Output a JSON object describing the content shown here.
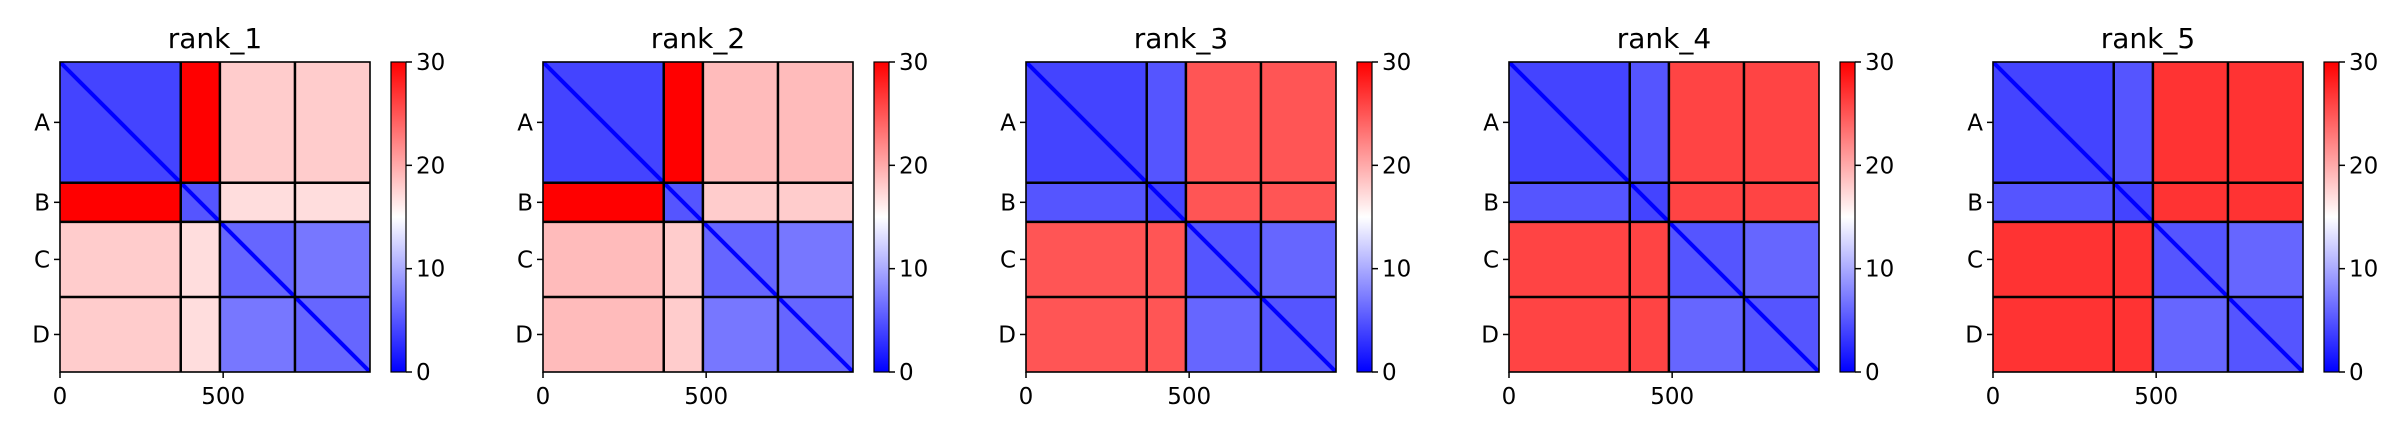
{
  "chart_data": [
    {
      "type": "heatmap",
      "title": "rank_1",
      "x_ticks": [
        0,
        500
      ],
      "y_tick_labels": [
        "A",
        "B",
        "C",
        "D"
      ],
      "colorbar": {
        "range": [
          0,
          30
        ],
        "ticks": [
          0,
          10,
          20,
          30
        ],
        "colormap": "bwr"
      },
      "matrix_size": 950,
      "block_boundaries": [
        370,
        490,
        720,
        950
      ],
      "chain_blocks": {
        "A": {
          "A": "4",
          "B": "30",
          "C": "18",
          "D": "18"
        },
        "B": {
          "A": "30",
          "B": "5",
          "C": "17",
          "D": "17"
        },
        "C": {
          "A": "18",
          "B": "17",
          "C": "6",
          "D": "7"
        },
        "D": {
          "A": "18",
          "B": "17",
          "C": "7",
          "D": "6"
        }
      }
    },
    {
      "type": "heatmap",
      "title": "rank_2",
      "x_ticks": [
        0,
        500
      ],
      "y_tick_labels": [
        "A",
        "B",
        "C",
        "D"
      ],
      "colorbar": {
        "range": [
          0,
          30
        ],
        "ticks": [
          0,
          10,
          20,
          30
        ],
        "colormap": "bwr"
      },
      "matrix_size": 950,
      "block_boundaries": [
        370,
        490,
        720,
        950
      ],
      "chain_blocks": {
        "A": {
          "A": "4",
          "B": "30",
          "C": "19",
          "D": "19"
        },
        "B": {
          "A": "30",
          "B": "5",
          "C": "18",
          "D": "18"
        },
        "C": {
          "A": "19",
          "B": "18",
          "C": "6",
          "D": "7"
        },
        "D": {
          "A": "19",
          "B": "18",
          "C": "7",
          "D": "6"
        }
      }
    },
    {
      "type": "heatmap",
      "title": "rank_3",
      "x_ticks": [
        0,
        500
      ],
      "y_tick_labels": [
        "A",
        "B",
        "C",
        "D"
      ],
      "colorbar": {
        "range": [
          0,
          30
        ],
        "ticks": [
          0,
          10,
          20,
          30
        ],
        "colormap": "bwr"
      },
      "matrix_size": 950,
      "block_boundaries": [
        370,
        490,
        720,
        950
      ],
      "chain_blocks": {
        "A": {
          "A": "4",
          "B": "5",
          "C": "25",
          "D": "25"
        },
        "B": {
          "A": "5",
          "B": "4",
          "C": "25",
          "D": "25"
        },
        "C": {
          "A": "25",
          "B": "25",
          "C": "5",
          "D": "6"
        },
        "D": {
          "A": "25",
          "B": "25",
          "C": "6",
          "D": "5"
        }
      }
    },
    {
      "type": "heatmap",
      "title": "rank_4",
      "x_ticks": [
        0,
        500
      ],
      "y_tick_labels": [
        "A",
        "B",
        "C",
        "D"
      ],
      "colorbar": {
        "range": [
          0,
          30
        ],
        "ticks": [
          0,
          10,
          20,
          30
        ],
        "colormap": "bwr"
      },
      "matrix_size": 950,
      "block_boundaries": [
        370,
        490,
        720,
        950
      ],
      "chain_blocks": {
        "A": {
          "A": "4",
          "B": "5",
          "C": "26",
          "D": "26"
        },
        "B": {
          "A": "5",
          "B": "4",
          "C": "26",
          "D": "26"
        },
        "C": {
          "A": "26",
          "B": "26",
          "C": "5",
          "D": "6"
        },
        "D": {
          "A": "26",
          "B": "26",
          "C": "6",
          "D": "5"
        }
      }
    },
    {
      "type": "heatmap",
      "title": "rank_5",
      "x_ticks": [
        0,
        500
      ],
      "y_tick_labels": [
        "A",
        "B",
        "C",
        "D"
      ],
      "colorbar": {
        "range": [
          0,
          30
        ],
        "ticks": [
          0,
          10,
          20,
          30
        ],
        "colormap": "bwr"
      },
      "matrix_size": 950,
      "block_boundaries": [
        370,
        490,
        720,
        950
      ],
      "chain_blocks": {
        "A": {
          "A": "4",
          "B": "5",
          "C": "27",
          "D": "27"
        },
        "B": {
          "A": "5",
          "B": "4",
          "C": "27",
          "D": "27"
        },
        "C": {
          "A": "27",
          "B": "27",
          "C": "5",
          "D": "6"
        },
        "D": {
          "A": "27",
          "B": "27",
          "C": "6",
          "D": "5"
        }
      }
    }
  ]
}
